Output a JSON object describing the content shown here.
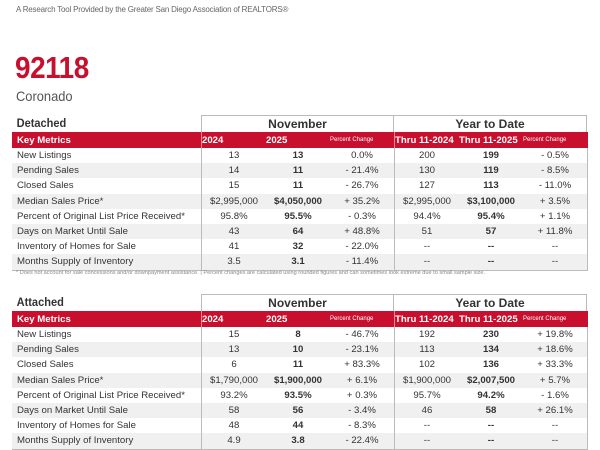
{
  "header": {
    "subtitle": "A Research Tool Provided by the Greater San Diego Association of REALTORS®",
    "zip": "92118",
    "city": "Coronado"
  },
  "columns": {
    "key_metrics": "Key Metrics",
    "month": "November",
    "ytd": "Year to Date",
    "y1": "2024",
    "y2": "2025",
    "pct": "Percent Change",
    "t1": "Thru 11-2024",
    "t2": "Thru 11-2025"
  },
  "footnote": "* Does not account for sale concessions and/or downpayment assistance.  |  Percent changes are calculated using rounded figures and can sometimes look extreme due to small sample size.",
  "sections": [
    {
      "title": "Detached",
      "rows": [
        [
          "New Listings",
          "13",
          "13",
          "0.0%",
          "200",
          "199",
          "- 0.5%"
        ],
        [
          "Pending Sales",
          "14",
          "11",
          "- 21.4%",
          "130",
          "119",
          "- 8.5%"
        ],
        [
          "Closed Sales",
          "15",
          "11",
          "- 26.7%",
          "127",
          "113",
          "- 11.0%"
        ],
        [
          "Median Sales Price*",
          "$2,995,000",
          "$4,050,000",
          "+ 35.2%",
          "$2,995,000",
          "$3,100,000",
          "+ 3.5%"
        ],
        [
          "Percent of Original List Price Received*",
          "95.8%",
          "95.5%",
          "- 0.3%",
          "94.4%",
          "95.4%",
          "+ 1.1%"
        ],
        [
          "Days on Market Until Sale",
          "43",
          "64",
          "+ 48.8%",
          "51",
          "57",
          "+ 11.8%"
        ],
        [
          "Inventory of Homes for Sale",
          "41",
          "32",
          "- 22.0%",
          "--",
          "--",
          "--"
        ],
        [
          "Months Supply of Inventory",
          "3.5",
          "3.1",
          "- 11.4%",
          "--",
          "--",
          "--"
        ]
      ]
    },
    {
      "title": "Attached",
      "rows": [
        [
          "New Listings",
          "15",
          "8",
          "- 46.7%",
          "192",
          "230",
          "+ 19.8%"
        ],
        [
          "Pending Sales",
          "13",
          "10",
          "- 23.1%",
          "113",
          "134",
          "+ 18.6%"
        ],
        [
          "Closed Sales",
          "6",
          "11",
          "+ 83.3%",
          "102",
          "136",
          "+ 33.3%"
        ],
        [
          "Median Sales Price*",
          "$1,790,000",
          "$1,900,000",
          "+ 6.1%",
          "$1,900,000",
          "$2,007,500",
          "+ 5.7%"
        ],
        [
          "Percent of Original List Price Received*",
          "93.2%",
          "93.5%",
          "+ 0.3%",
          "95.7%",
          "94.2%",
          "- 1.6%"
        ],
        [
          "Days on Market Until Sale",
          "58",
          "56",
          "- 3.4%",
          "46",
          "58",
          "+ 26.1%"
        ],
        [
          "Inventory of Homes for Sale",
          "48",
          "44",
          "- 8.3%",
          "--",
          "--",
          "--"
        ],
        [
          "Months Supply of Inventory",
          "4.9",
          "3.8",
          "- 22.4%",
          "--",
          "--",
          "--"
        ]
      ]
    }
  ]
}
